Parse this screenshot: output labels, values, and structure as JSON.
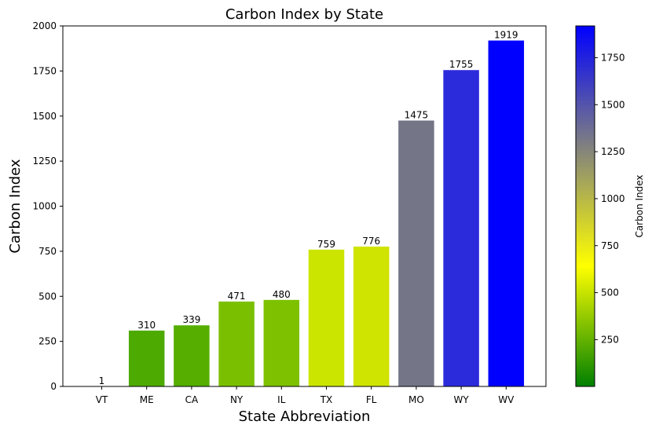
{
  "chart_data": {
    "type": "bar",
    "title": "Carbon Index by State",
    "xlabel": "State Abbreviation",
    "ylabel": "Carbon Index",
    "categories": [
      "VT",
      "ME",
      "CA",
      "NY",
      "IL",
      "TX",
      "FL",
      "MO",
      "WY",
      "WV"
    ],
    "values": [
      1,
      310,
      339,
      471,
      480,
      759,
      776,
      1475,
      1755,
      1919
    ],
    "bar_colors": [
      "#008000",
      "#4daa00",
      "#55ae00",
      "#7bc000",
      "#7dc100",
      "#cce500",
      "#cfe400",
      "#747587",
      "#2c2bdc",
      "#0000ff"
    ],
    "ylim": [
      0,
      2000
    ],
    "yticks": [
      "0",
      "250",
      "500",
      "750",
      "1000",
      "1250",
      "1500",
      "1750",
      "2000"
    ],
    "grid": false,
    "colorbar": {
      "label": "Carbon Index",
      "range": [
        1,
        1919
      ],
      "ticks": [
        "250",
        "500",
        "750",
        "1000",
        "1250",
        "1500",
        "1750"
      ],
      "colormap": [
        "#008000",
        "#ffff00",
        "#808080",
        "#0000ff"
      ]
    }
  }
}
